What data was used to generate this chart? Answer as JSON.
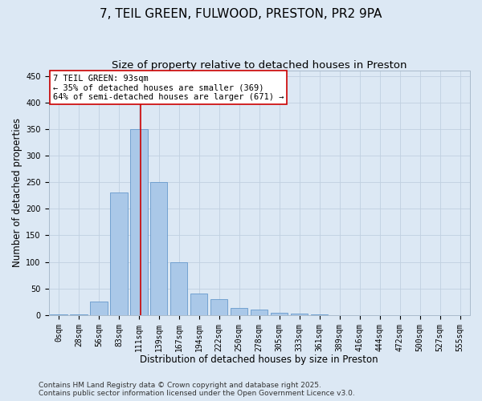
{
  "title_line1": "7, TEIL GREEN, FULWOOD, PRESTON, PR2 9PA",
  "title_line2": "Size of property relative to detached houses in Preston",
  "xlabel": "Distribution of detached houses by size in Preston",
  "ylabel": "Number of detached properties",
  "bar_labels": [
    "0sqm",
    "28sqm",
    "56sqm",
    "83sqm",
    "111sqm",
    "139sqm",
    "167sqm",
    "194sqm",
    "222sqm",
    "250sqm",
    "278sqm",
    "305sqm",
    "333sqm",
    "361sqm",
    "389sqm",
    "416sqm",
    "444sqm",
    "472sqm",
    "500sqm",
    "527sqm",
    "555sqm"
  ],
  "bar_values": [
    2,
    2,
    25,
    230,
    350,
    250,
    100,
    40,
    30,
    13,
    10,
    5,
    3,
    1,
    0,
    0,
    0,
    0,
    0,
    0,
    0
  ],
  "bar_color": "#aac8e8",
  "bar_edge_color": "#6699cc",
  "vline_position": 4.1,
  "vline_color": "#cc0000",
  "annotation_text_line1": "7 TEIL GREEN: 93sqm",
  "annotation_text_line2": "← 35% of detached houses are smaller (369)",
  "annotation_text_line3": "64% of semi-detached houses are larger (671) →",
  "annotation_box_facecolor": "#ffffff",
  "annotation_box_edgecolor": "#cc0000",
  "ylim": [
    0,
    460
  ],
  "yticks": [
    0,
    50,
    100,
    150,
    200,
    250,
    300,
    350,
    400,
    450
  ],
  "grid_color": "#c0d0e0",
  "background_color": "#dce8f4",
  "footer_line1": "Contains HM Land Registry data © Crown copyright and database right 2025.",
  "footer_line2": "Contains public sector information licensed under the Open Government Licence v3.0.",
  "title_fontsize": 11,
  "subtitle_fontsize": 9.5,
  "axis_label_fontsize": 8.5,
  "tick_fontsize": 7,
  "annotation_fontsize": 7.5,
  "footer_fontsize": 6.5
}
